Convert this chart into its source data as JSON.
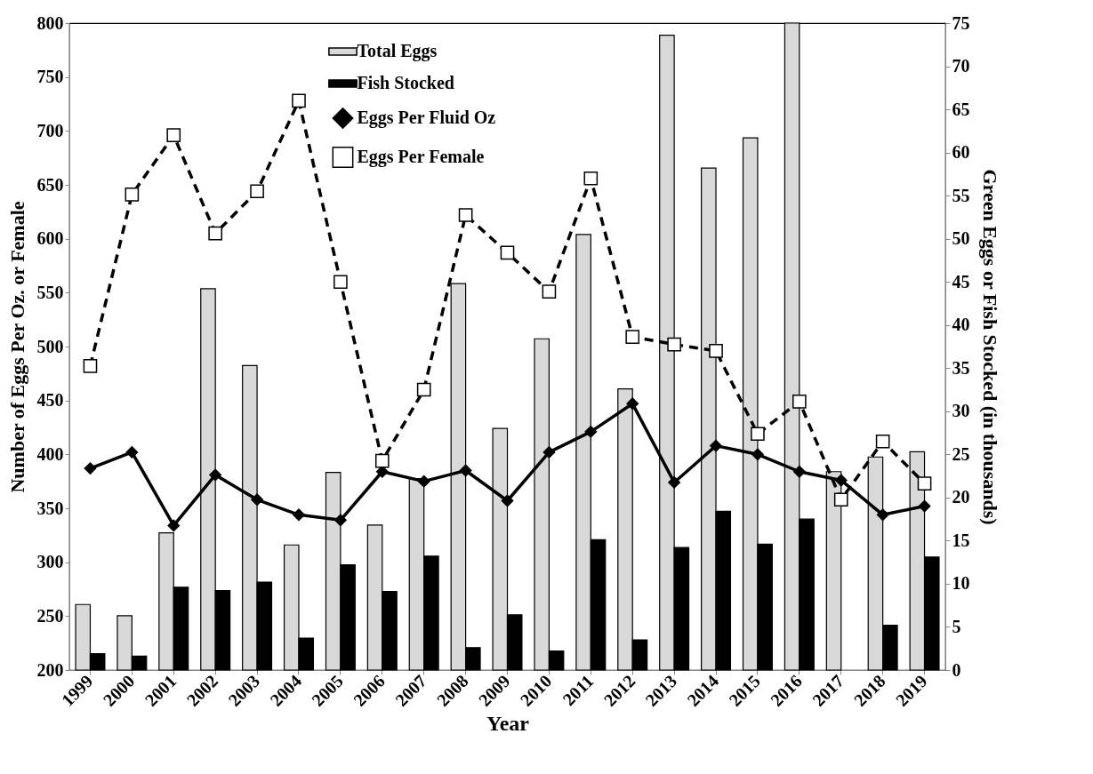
{
  "chart_data": {
    "type": "bar",
    "xlabel": "Year",
    "ylabel": "Number of Eggs Per Oz. or Female",
    "y2label": "Green Eggs or Fish Stocked (in thousands)",
    "categories": [
      "1999",
      "2000",
      "2001",
      "2002",
      "2003",
      "2004",
      "2005",
      "2006",
      "2007",
      "2008",
      "2009",
      "2010",
      "2011",
      "2012",
      "2013",
      "2014",
      "2015",
      "2016",
      "2017",
      "2018",
      "2019"
    ],
    "series": [
      {
        "name": "Total Eggs",
        "axis": "y2",
        "color": "#d9d9d9",
        "values": [
          7.6,
          6.3,
          15.9,
          44.2,
          35.3,
          14.5,
          22.9,
          16.8,
          22.2,
          44.8,
          28.0,
          38.4,
          50.5,
          32.6,
          73.6,
          58.2,
          61.7,
          75.0,
          23.0,
          24.7,
          25.3
        ]
      },
      {
        "name": "Fish Stocked",
        "axis": "y2",
        "color": "#000000",
        "values": [
          1.9,
          1.6,
          9.6,
          9.2,
          10.2,
          3.7,
          12.2,
          9.1,
          13.2,
          2.6,
          6.4,
          2.2,
          15.1,
          3.5,
          14.2,
          18.4,
          14.6,
          17.5,
          null,
          5.2,
          13.1
        ]
      },
      {
        "name": "Eggs Per Fluid Oz",
        "type": "line",
        "color": "#000000",
        "marker": "diamond",
        "line_style": "solid",
        "values": [
          387,
          402,
          334,
          381,
          358,
          344,
          339,
          384,
          375,
          385,
          357,
          402,
          421,
          447,
          374,
          408,
          400,
          384,
          376,
          344,
          352
        ]
      },
      {
        "name": "Eggs Per Female",
        "type": "line",
        "color": "#000000",
        "marker": "square",
        "line_style": "dashed",
        "values": [
          482,
          641,
          696,
          605,
          644,
          728,
          560,
          394,
          460,
          622,
          587,
          551,
          656,
          509,
          502,
          496,
          419,
          449,
          358,
          412,
          373
        ]
      }
    ],
    "ylim": [
      200,
      800
    ],
    "yticks": [
      200,
      250,
      300,
      350,
      400,
      450,
      500,
      550,
      600,
      650,
      700,
      750,
      800
    ],
    "y2lim": [
      0,
      75
    ],
    "y2ticks": [
      0,
      5,
      10,
      15,
      20,
      25,
      30,
      35,
      40,
      45,
      50,
      55,
      60,
      65,
      70,
      75
    ],
    "legend": "top"
  }
}
